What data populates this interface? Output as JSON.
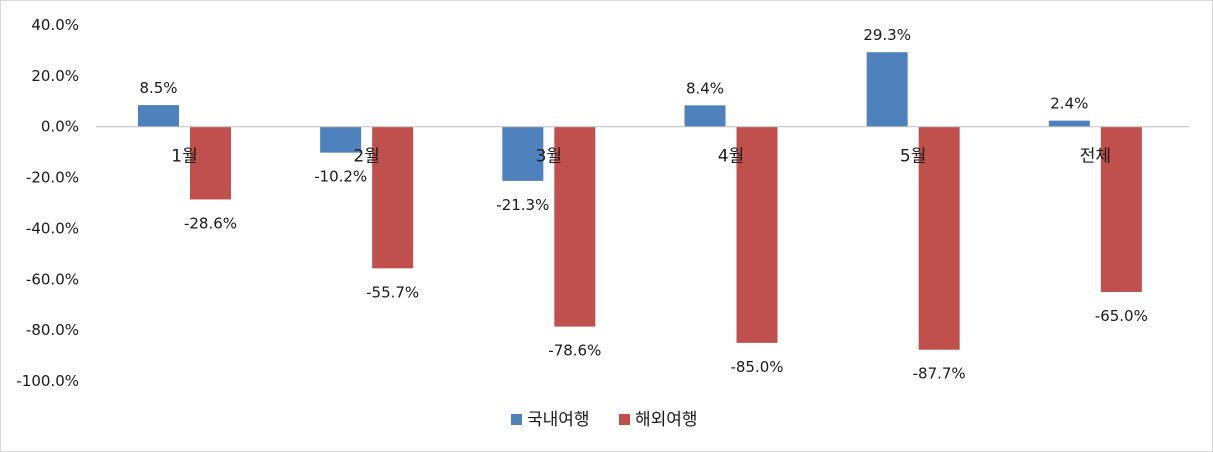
{
  "chart_data": {
    "type": "bar",
    "categories": [
      "1월",
      "2월",
      "3월",
      "4월",
      "5월",
      "전체"
    ],
    "series": [
      {
        "name": "국내여행",
        "values": [
          8.5,
          -10.2,
          -21.3,
          8.4,
          29.3,
          2.4
        ],
        "color": "#4f81bd"
      },
      {
        "name": "해외여행",
        "values": [
          -28.6,
          -55.7,
          -78.6,
          -85.0,
          -87.7,
          -65.0
        ],
        "color": "#c0504d"
      }
    ],
    "data_labels": [
      [
        "8.5%",
        "-10.2%",
        "-21.3%",
        "8.4%",
        "29.3%",
        "2.4%"
      ],
      [
        "-28.6%",
        "-55.7%",
        "-78.6%",
        "-85.0%",
        "-87.7%",
        "-65.0%"
      ]
    ],
    "yticks": [
      40,
      20,
      0,
      -20,
      -40,
      -60,
      -80,
      -100
    ],
    "ytick_labels": [
      "40.0%",
      "20.0%",
      "0.0%",
      "-20.0%",
      "-40.0%",
      "-60.0%",
      "-80.0%",
      "-100.0%"
    ],
    "ylim": [
      -100,
      40
    ],
    "grid": false,
    "legend_position": "bottom"
  }
}
